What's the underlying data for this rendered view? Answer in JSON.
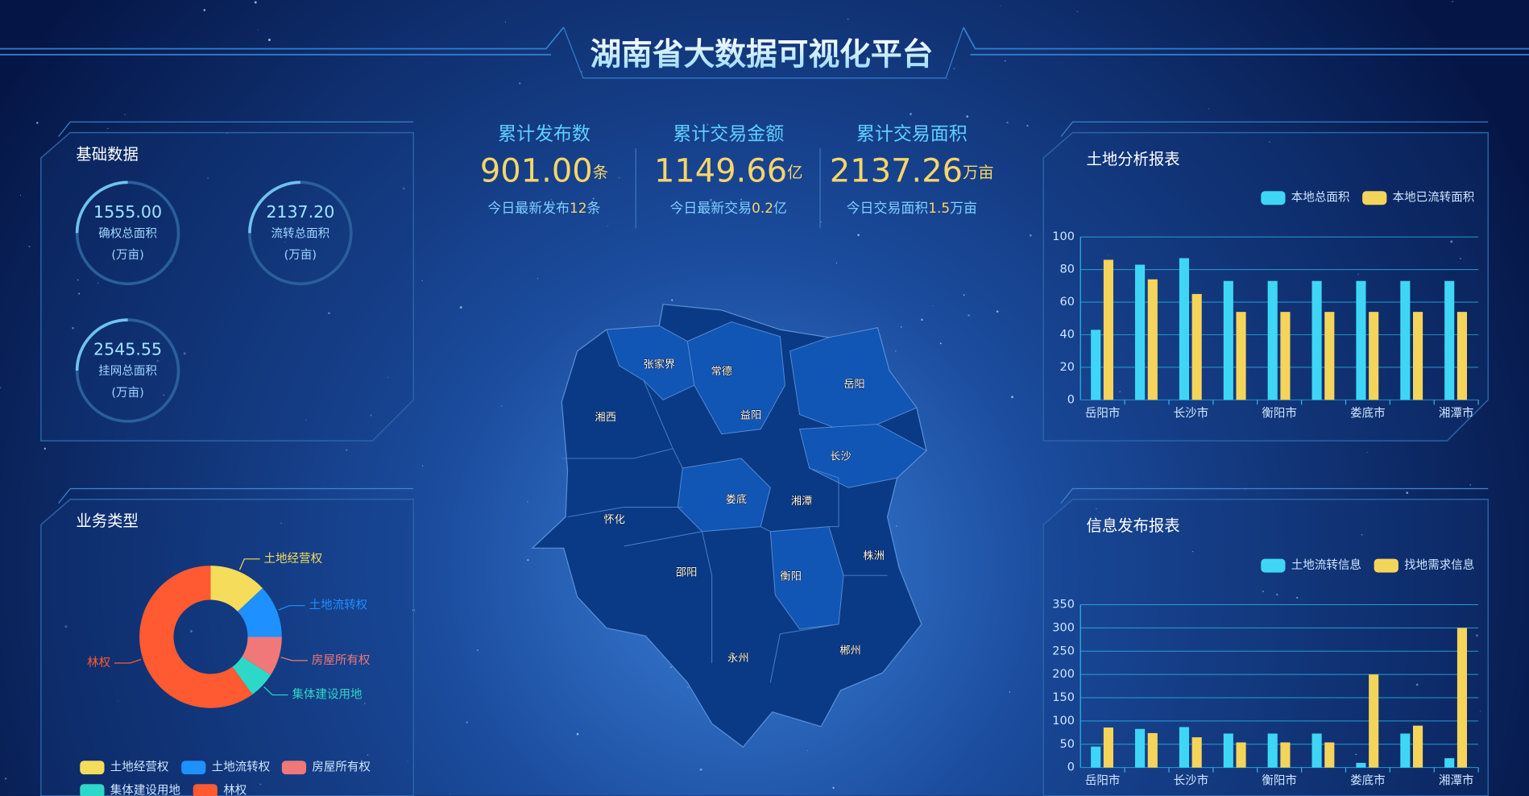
{
  "header": {
    "title": "湖南省大数据可视化平台"
  },
  "stats": [
    {
      "label": "累计发布数",
      "value": "901.00",
      "unit": "条",
      "today_prefix": "今日最新发布",
      "today_value": "12",
      "today_unit": "条"
    },
    {
      "label": "累计交易金额",
      "value": "1149.66",
      "unit": "亿",
      "today_prefix": "今日最新交易",
      "today_value": "0.2",
      "today_unit": "亿"
    },
    {
      "label": "累计交易面积",
      "value": "2137.26",
      "unit": "万亩",
      "today_prefix": "今日交易面积",
      "today_value": "1.5",
      "today_unit": "万亩"
    }
  ],
  "basic_data": {
    "title": "基础数据",
    "items": [
      {
        "value": "1555.00",
        "label": "确权总面积",
        "unit": "(万亩)"
      },
      {
        "value": "2137.20",
        "label": "流转总面积",
        "unit": "(万亩)"
      },
      {
        "value": "2545.55",
        "label": "挂网总面积",
        "unit": "(万亩)"
      }
    ]
  },
  "map": {
    "regions": [
      "张家界",
      "常德",
      "岳阳",
      "湘西",
      "益阳",
      "长沙",
      "娄底",
      "湘潭",
      "怀化",
      "株洲",
      "邵阳",
      "衡阳",
      "永州",
      "郴州"
    ]
  },
  "chart_data": [
    {
      "type": "donut",
      "title": "业务类型",
      "categories": [
        "土地经营权",
        "土地流转权",
        "房屋所有权",
        "集体建设用地",
        "林权"
      ],
      "values": [
        13,
        12,
        9,
        6,
        60
      ],
      "colors": [
        "#f5dc5a",
        "#1e90ff",
        "#f07878",
        "#2ed8c8",
        "#ff5a32"
      ]
    },
    {
      "type": "bar",
      "title": "土地分析报表",
      "categories": [
        "岳阳市",
        null,
        "长沙市",
        null,
        "衡阳市",
        null,
        "娄底市",
        null,
        "湘潭市"
      ],
      "series": [
        {
          "name": "本地总面积",
          "color": "#3fd6f5",
          "values": [
            43,
            83,
            87,
            73,
            73,
            73,
            73,
            73,
            73
          ]
        },
        {
          "name": "本地已流转面积",
          "color": "#f5d45a",
          "values": [
            86,
            74,
            65,
            54,
            54,
            54,
            54,
            54,
            54
          ]
        }
      ],
      "ylim": [
        0,
        100
      ],
      "yticks": [
        0,
        20,
        40,
        60,
        80,
        100
      ],
      "grid": true
    },
    {
      "type": "bar",
      "title": "信息发布报表",
      "categories": [
        "岳阳市",
        null,
        "长沙市",
        null,
        "衡阳市",
        null,
        "娄底市",
        null,
        "湘潭市"
      ],
      "series": [
        {
          "name": "土地流转信息",
          "color": "#3fd6f5",
          "values": [
            45,
            83,
            87,
            73,
            73,
            73,
            10,
            73,
            20
          ]
        },
        {
          "name": "找地需求信息",
          "color": "#f5d45a",
          "values": [
            86,
            74,
            65,
            54,
            54,
            54,
            200,
            90,
            300
          ]
        }
      ],
      "ylim": [
        0,
        350
      ],
      "yticks": [
        0,
        50,
        100,
        150,
        200,
        250,
        300,
        350
      ],
      "grid": true
    }
  ]
}
